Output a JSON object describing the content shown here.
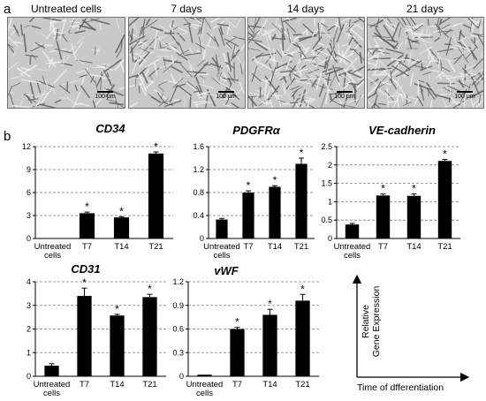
{
  "panel_a": {
    "letter": "a",
    "images": [
      {
        "label": "Untreated cells",
        "scale": "100 µm",
        "density": 0.55
      },
      {
        "label": "7 days",
        "scale": "100 µm",
        "density": 0.8
      },
      {
        "label": "14 days",
        "scale": "100 µm",
        "density": 1.0
      },
      {
        "label": "21 days",
        "scale": "100 µm",
        "density": 1.0
      }
    ]
  },
  "panel_b": {
    "letter": "b"
  },
  "chart_data": [
    {
      "type": "bar",
      "title": "CD34",
      "categories": [
        "Untreated cells",
        "T7",
        "T14",
        "T21"
      ],
      "values": [
        0.05,
        3.3,
        2.75,
        11.1
      ],
      "errors": [
        0,
        0.15,
        0.1,
        0.2
      ],
      "significant": [
        false,
        true,
        true,
        true
      ],
      "ylim": [
        0,
        12
      ],
      "yticks": [
        "0",
        "3",
        "6",
        "9",
        "12"
      ],
      "grid": "dashed"
    },
    {
      "type": "bar",
      "title": "PDGFRα",
      "categories": [
        "Untreated cells",
        "T7",
        "T14",
        "T21"
      ],
      "values": [
        0.33,
        0.8,
        0.9,
        1.3
      ],
      "errors": [
        0.02,
        0.03,
        0.02,
        0.1
      ],
      "significant": [
        false,
        true,
        true,
        true
      ],
      "ylim": [
        0,
        1.6
      ],
      "yticks": [
        "0",
        "0.4",
        "0.8",
        "1.2",
        "1.6"
      ],
      "grid": "dashed"
    },
    {
      "type": "bar",
      "title": "VE-cadherin",
      "categories": [
        "Untreated cells",
        "T7",
        "T14",
        "T21"
      ],
      "values": [
        0.38,
        1.17,
        1.16,
        2.11
      ],
      "errors": [
        0.03,
        0.04,
        0.05,
        0.04
      ],
      "significant": [
        false,
        true,
        true,
        true
      ],
      "ylim": [
        0,
        2.5
      ],
      "yticks": [
        "0",
        "0.5",
        "1",
        "1.5",
        "2",
        "2.5"
      ],
      "grid": "dashed"
    },
    {
      "type": "bar",
      "title": "CD31",
      "categories": [
        "Untreated cells",
        "T7",
        "T14",
        "T21"
      ],
      "values": [
        0.45,
        3.4,
        2.57,
        3.35
      ],
      "errors": [
        0.08,
        0.33,
        0.05,
        0.12
      ],
      "significant": [
        false,
        true,
        true,
        true
      ],
      "ylim": [
        0,
        4
      ],
      "yticks": [
        "0",
        "1",
        "2",
        "3",
        "4"
      ],
      "grid": "dashed"
    },
    {
      "type": "bar",
      "title": "vWF",
      "categories": [
        "Untreated cells",
        "T7",
        "T14",
        "T21"
      ],
      "values": [
        0.02,
        0.6,
        0.78,
        0.96
      ],
      "errors": [
        0,
        0.02,
        0.07,
        0.08
      ],
      "significant": [
        false,
        true,
        true,
        true
      ],
      "ylim": [
        0,
        1.2
      ],
      "yticks": [
        "0",
        "0.3",
        "0.6",
        "0.9",
        "1.2"
      ],
      "grid": "dashed"
    }
  ],
  "significance_marker": "*",
  "axis_legend": {
    "ylabel_line1": "Relative",
    "ylabel_line2": "Gene Expression",
    "xlabel": "Time of dfferentiation"
  }
}
